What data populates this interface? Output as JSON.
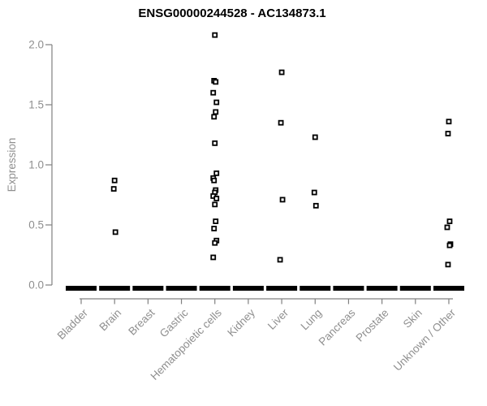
{
  "colors": {
    "marker": "#000000",
    "marker_fill": "#ffffff",
    "axis": "#808080",
    "labels": "#8f8f8f",
    "title": "#000000",
    "background": "#ffffff"
  },
  "chart_data": {
    "type": "scatter",
    "title": "ENSG00000244528 - AC134873.1",
    "ylabel": "Expression",
    "xlabel": "",
    "ylim": [
      0,
      2.1
    ],
    "ytick_values": [
      0,
      0.5,
      1,
      1.5,
      2
    ],
    "ytick_labels": [
      "0.0",
      "0.5",
      "1.0",
      "1.5",
      "2.0"
    ],
    "grid": false,
    "legend": false,
    "marker_shape": "open-square",
    "categories": [
      "Bladder",
      "Brain",
      "Breast",
      "Gastric",
      "Hematopoietic cells",
      "Kidney",
      "Liver",
      "Lung",
      "Pancreas",
      "Prostate",
      "Skin",
      "Unknown / Other"
    ],
    "series": [
      {
        "category": "Bladder",
        "values": []
      },
      {
        "category": "Brain",
        "values": [
          0.87,
          0.8,
          0.44
        ]
      },
      {
        "category": "Breast",
        "values": []
      },
      {
        "category": "Gastric",
        "values": []
      },
      {
        "category": "Hematopoietic cells",
        "values": [
          2.08,
          1.7,
          1.69,
          1.6,
          1.52,
          1.44,
          1.4,
          1.18,
          0.93,
          0.89,
          0.87,
          0.79,
          0.77,
          0.74,
          0.72,
          0.67,
          0.53,
          0.47,
          0.37,
          0.35,
          0.23
        ]
      },
      {
        "category": "Kidney",
        "values": []
      },
      {
        "category": "Liver",
        "values": [
          1.77,
          1.35,
          0.71,
          0.21
        ]
      },
      {
        "category": "Lung",
        "values": [
          1.23,
          0.77,
          0.66
        ]
      },
      {
        "category": "Pancreas",
        "values": []
      },
      {
        "category": "Prostate",
        "values": []
      },
      {
        "category": "Skin",
        "values": []
      },
      {
        "category": "Unknown / Other",
        "values": [
          1.36,
          1.26,
          0.53,
          0.48,
          0.34,
          0.33,
          0.17
        ]
      }
    ],
    "zero_cluster": {
      "present_in_all_categories": true,
      "note": "dense overlapping samples at expression 0 form a thick black dash under every category"
    }
  }
}
